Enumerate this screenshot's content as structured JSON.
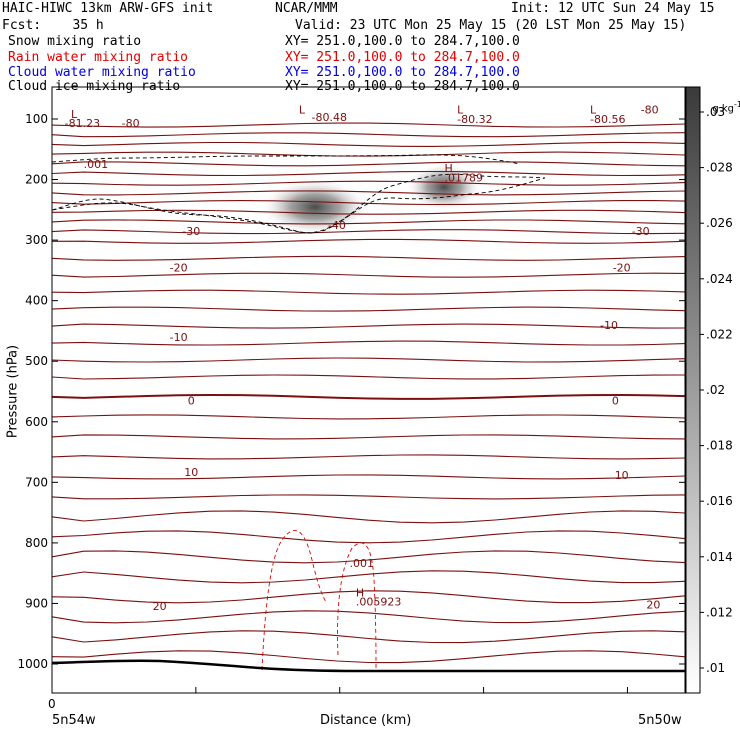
{
  "header": {
    "line1_left": "HAIC-HIWC 13km ARW-GFS init",
    "line1_mid": "NCAR/MMM",
    "line1_right": "Init: 12 UTC Sun 24 May 15",
    "fcst": "Fcst:    35 h",
    "valid": "Valid: 23 UTC Mon 25 May 15 (20 LST Mon 25 May 15)",
    "fields": [
      {
        "name": "Snow mixing ratio",
        "xy": "XY= 251.0,100.0 to 284.7,100.0",
        "color": "#000000"
      },
      {
        "name": "Rain water mixing ratio",
        "xy": "XY= 251.0,100.0 to 284.7,100.0",
        "color": "#ff0000"
      },
      {
        "name": "Cloud water mixing ratio",
        "xy": "XY= 251.0,100.0 to 284.7,100.0",
        "color": "#0000ff"
      },
      {
        "name": "Cloud ice mixing ratio",
        "xy": "XY= 251.0,100.0 to 284.7,100.0",
        "color": "#000000"
      }
    ]
  },
  "chart_data": {
    "type": "contour",
    "ylabel": "Pressure (hPa)",
    "xlabel": "Distance (km)",
    "x_start_label": "5n54w",
    "x_end_label": "5n50w",
    "x_zero_label": "0",
    "y_ticks": [
      100,
      200,
      300,
      400,
      500,
      600,
      700,
      800,
      900,
      1000
    ],
    "ylim": [
      1050,
      50
    ],
    "colorbar": {
      "unit": "g kg",
      "unit_exp": "-1",
      "ticks": [
        ".01",
        ".012",
        ".014",
        ".016",
        ".018",
        ".02",
        ".022",
        ".024",
        ".026",
        ".028",
        ".03"
      ]
    },
    "temperature_labels": [
      {
        "x": 0.45,
        "p": 275,
        "text": "-40"
      },
      {
        "x": 0.22,
        "p": 285,
        "text": "-30"
      },
      {
        "x": 0.93,
        "p": 285,
        "text": "-30"
      },
      {
        "x": 0.2,
        "p": 345,
        "text": "-20"
      },
      {
        "x": 0.9,
        "p": 345,
        "text": "-20"
      },
      {
        "x": 0.2,
        "p": 460,
        "text": "-10"
      },
      {
        "x": 0.88,
        "p": 440,
        "text": "-10"
      },
      {
        "x": 0.22,
        "p": 565,
        "text": "0"
      },
      {
        "x": 0.89,
        "p": 565,
        "text": "0"
      },
      {
        "x": 0.22,
        "p": 683,
        "text": "10"
      },
      {
        "x": 0.9,
        "p": 688,
        "text": "10"
      },
      {
        "x": 0.17,
        "p": 904,
        "text": "20"
      },
      {
        "x": 0.95,
        "p": 902,
        "text": "20"
      }
    ],
    "annotations": [
      {
        "x": 0.03,
        "p": 92,
        "text": "L"
      },
      {
        "x": 0.02,
        "p": 107,
        "text": "-81.23"
      },
      {
        "x": 0.11,
        "p": 107,
        "text": "-80"
      },
      {
        "x": 0.39,
        "p": 84,
        "text": "L"
      },
      {
        "x": 0.41,
        "p": 97,
        "text": "-80.48"
      },
      {
        "x": 0.64,
        "p": 84,
        "text": "L"
      },
      {
        "x": 0.64,
        "p": 100,
        "text": "-80.32"
      },
      {
        "x": 0.85,
        "p": 84,
        "text": "L"
      },
      {
        "x": 0.85,
        "p": 100,
        "text": "-80.56"
      },
      {
        "x": 0.93,
        "p": 84,
        "text": "-80"
      },
      {
        "x": 0.62,
        "p": 181,
        "text": "H"
      },
      {
        "x": 0.62,
        "p": 197,
        "text": ".01789"
      },
      {
        "x": 0.05,
        "p": 174,
        "text": ".001"
      },
      {
        "x": 0.44,
        "p": 1022,
        "text": ""
      },
      {
        "x": 0.47,
        "p": 833,
        "text": ".001"
      },
      {
        "x": 0.48,
        "p": 882,
        "text": "H"
      },
      {
        "x": 0.48,
        "p": 897,
        "text": ".005923"
      }
    ],
    "snow_max": {
      "x": 0.545,
      "p": 208,
      "value": 0.01789
    },
    "rain_max_value": 0.005923,
    "contour_interval_theta": 10
  }
}
